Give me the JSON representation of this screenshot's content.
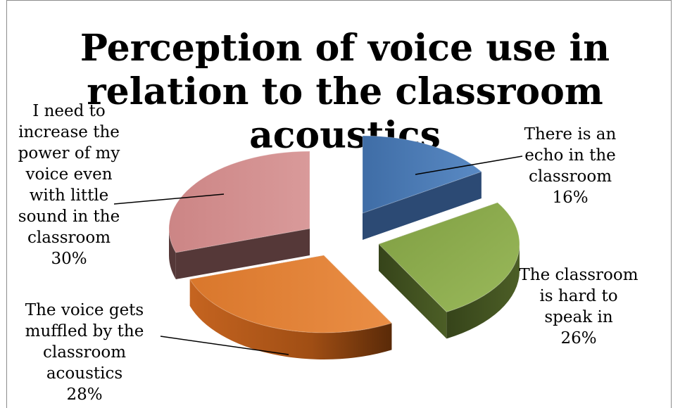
{
  "chart_data": {
    "type": "pie",
    "title": "Perception of voice use in relation to the classroom acoustics",
    "slices": [
      {
        "label": [
          "There is an",
          "echo in the",
          "classroom"
        ],
        "value": 16,
        "pct": "16%",
        "color": "#4a7ab5"
      },
      {
        "label": [
          "The classroom",
          "is hard to",
          "speak in"
        ],
        "value": 26,
        "pct": "26%",
        "color": "#8fac4f"
      },
      {
        "label": [
          "The voice gets",
          "muffled by the",
          "classroom",
          "acoustics"
        ],
        "value": 28,
        "pct": "28%",
        "color": "#e07f35"
      },
      {
        "label": [
          "I need to",
          "increase the",
          "power of my",
          "voice even",
          "with little",
          "sound in the",
          "classroom"
        ],
        "value": 30,
        "pct": "30%",
        "color": "#d08a8a"
      }
    ],
    "legend": "none",
    "style": "3D exploded pie"
  }
}
